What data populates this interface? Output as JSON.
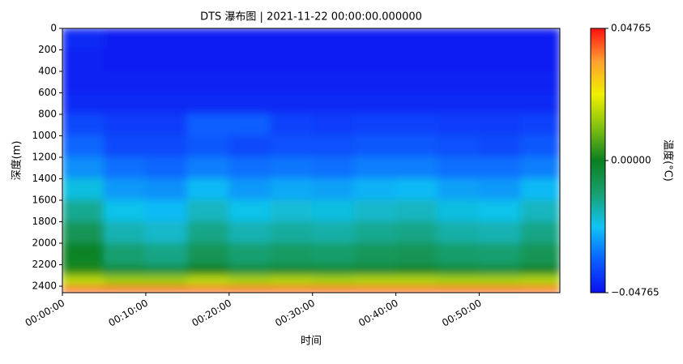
{
  "chart_data": {
    "type": "heatmap",
    "title": "DTS 瀑布图 | 2021-11-22 00:00:00.000000",
    "x_label": "时间",
    "y_label": "深度(m)",
    "colorbar_label": "温度(°C)",
    "x_bins": [
      0,
      300,
      600,
      900,
      1200,
      1500,
      1800,
      2100,
      2400,
      2700,
      3000,
      3300,
      3580
    ],
    "y_bins": [
      0,
      200,
      400,
      600,
      800,
      1000,
      1200,
      1400,
      1600,
      1800,
      2000,
      2200,
      2300,
      2400,
      2460
    ],
    "xlim": [
      0,
      3580
    ],
    "ylim": [
      2460,
      0
    ],
    "xticks": [
      {
        "value": 0,
        "label": "00:00:00"
      },
      {
        "value": 600,
        "label": "00:10:00"
      },
      {
        "value": 1200,
        "label": "00:20:00"
      },
      {
        "value": 1800,
        "label": "00:30:00"
      },
      {
        "value": 2400,
        "label": "00:40:00"
      },
      {
        "value": 3000,
        "label": "00:50:00"
      }
    ],
    "yticks": [
      0,
      200,
      400,
      600,
      800,
      1000,
      1200,
      1400,
      1600,
      1800,
      2000,
      2200,
      2400
    ],
    "clim": [
      -0.04765,
      0.04765
    ],
    "cticks": [
      {
        "value": -0.04765,
        "label": "−0.04765"
      },
      {
        "value": 0,
        "label": "0.00000"
      },
      {
        "value": 0.04765,
        "label": "0.04765"
      }
    ],
    "colorscale": [
      "#0a10f0",
      "#0a60ff",
      "#10c4f4",
      "#18a070",
      "#0a8020",
      "#80c010",
      "#f0f000",
      "#ffa030",
      "#ff1010"
    ],
    "z": [
      [
        -0.044,
        -0.046,
        -0.046,
        -0.046,
        -0.046,
        -0.046,
        -0.046,
        -0.046,
        -0.046,
        -0.046,
        -0.046,
        -0.046
      ],
      [
        -0.045,
        -0.046,
        -0.046,
        -0.046,
        -0.046,
        -0.046,
        -0.046,
        -0.046,
        -0.046,
        -0.046,
        -0.046,
        -0.046
      ],
      [
        -0.045,
        -0.045,
        -0.045,
        -0.045,
        -0.045,
        -0.045,
        -0.045,
        -0.045,
        -0.045,
        -0.045,
        -0.045,
        -0.045
      ],
      [
        -0.044,
        -0.044,
        -0.044,
        -0.044,
        -0.044,
        -0.044,
        -0.044,
        -0.044,
        -0.044,
        -0.044,
        -0.044,
        -0.044
      ],
      [
        -0.039,
        -0.041,
        -0.041,
        -0.036,
        -0.036,
        -0.04,
        -0.041,
        -0.04,
        -0.04,
        -0.041,
        -0.041,
        -0.04
      ],
      [
        -0.035,
        -0.039,
        -0.039,
        -0.037,
        -0.039,
        -0.038,
        -0.038,
        -0.037,
        -0.037,
        -0.038,
        -0.039,
        -0.037
      ],
      [
        -0.03,
        -0.034,
        -0.035,
        -0.032,
        -0.034,
        -0.033,
        -0.034,
        -0.032,
        -0.032,
        -0.034,
        -0.034,
        -0.032
      ],
      [
        -0.022,
        -0.029,
        -0.03,
        -0.025,
        -0.029,
        -0.027,
        -0.028,
        -0.026,
        -0.025,
        -0.028,
        -0.029,
        -0.025
      ],
      [
        -0.015,
        -0.023,
        -0.025,
        -0.019,
        -0.023,
        -0.021,
        -0.022,
        -0.02,
        -0.019,
        -0.022,
        -0.023,
        -0.019
      ],
      [
        -0.008,
        -0.018,
        -0.02,
        -0.014,
        -0.018,
        -0.016,
        -0.017,
        -0.015,
        -0.014,
        -0.017,
        -0.018,
        -0.014
      ],
      [
        -0.001,
        -0.012,
        -0.014,
        -0.008,
        -0.012,
        -0.01,
        -0.011,
        -0.009,
        -0.008,
        -0.011,
        -0.012,
        -0.008
      ],
      [
        0.002,
        -0.005,
        -0.006,
        0.0,
        -0.005,
        -0.003,
        -0.004,
        -0.003,
        -0.002,
        -0.004,
        -0.005,
        -0.002
      ],
      [
        0.018,
        0.015,
        0.015,
        0.018,
        0.016,
        0.017,
        0.016,
        0.017,
        0.017,
        0.016,
        0.016,
        0.017
      ],
      [
        0.04,
        0.04,
        0.04,
        0.04,
        0.04,
        0.04,
        0.04,
        0.04,
        0.04,
        0.04,
        0.04,
        0.04
      ]
    ]
  }
}
